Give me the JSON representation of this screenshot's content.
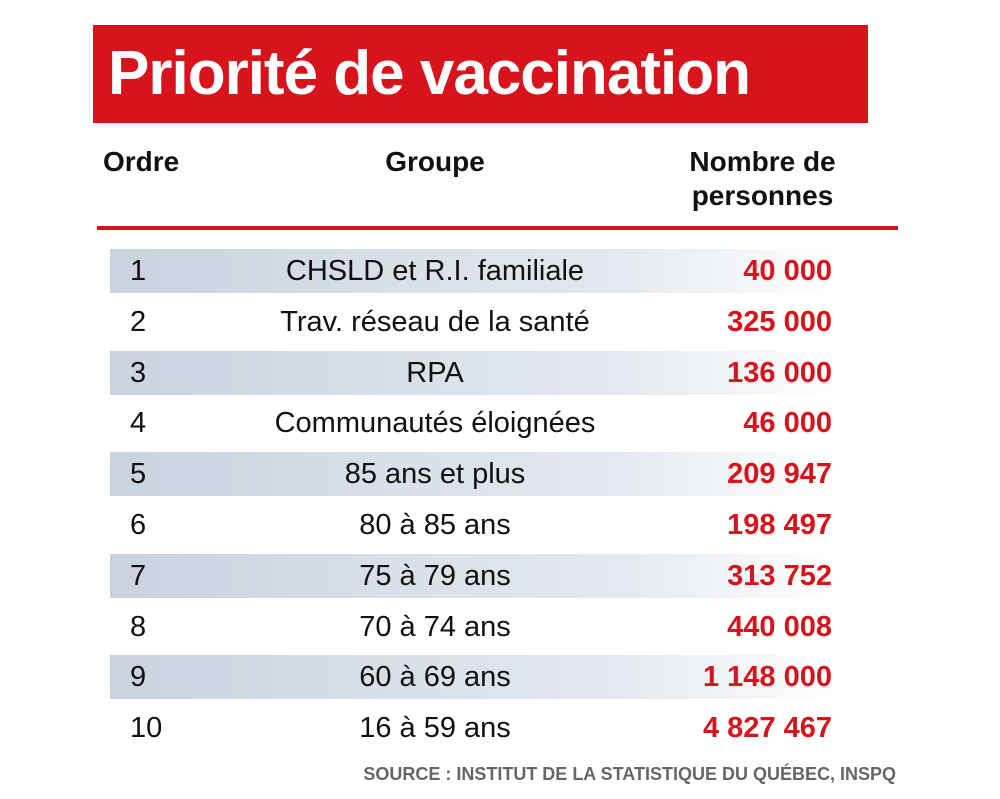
{
  "header": {
    "title": "Priorité de vaccination"
  },
  "table": {
    "columns": [
      "Ordre",
      "Groupe",
      "Nombre de personnes"
    ],
    "rows": [
      [
        "1",
        "CHSLD et R.I. familiale",
        "40 000"
      ],
      [
        "2",
        "Trav. réseau de la santé",
        "325 000"
      ],
      [
        "3",
        "RPA",
        "136 000"
      ],
      [
        "4",
        "Communautés éloignées",
        "46 000"
      ],
      [
        "5",
        "85 ans et plus",
        "209 947"
      ],
      [
        "6",
        "80 à 85 ans",
        "198 497"
      ],
      [
        "7",
        "75 à 79 ans",
        "313 752"
      ],
      [
        "8",
        "70 à 74 ans",
        "440 008"
      ],
      [
        "9",
        "60 à 69 ans",
        "1 148 000"
      ],
      [
        "10",
        "16 à 59 ans",
        "4 827 467"
      ]
    ]
  },
  "footer": {
    "source": "SOURCE : INSTITUT DE LA STATISTIQUE DU QUÉBEC, INSPQ"
  }
}
